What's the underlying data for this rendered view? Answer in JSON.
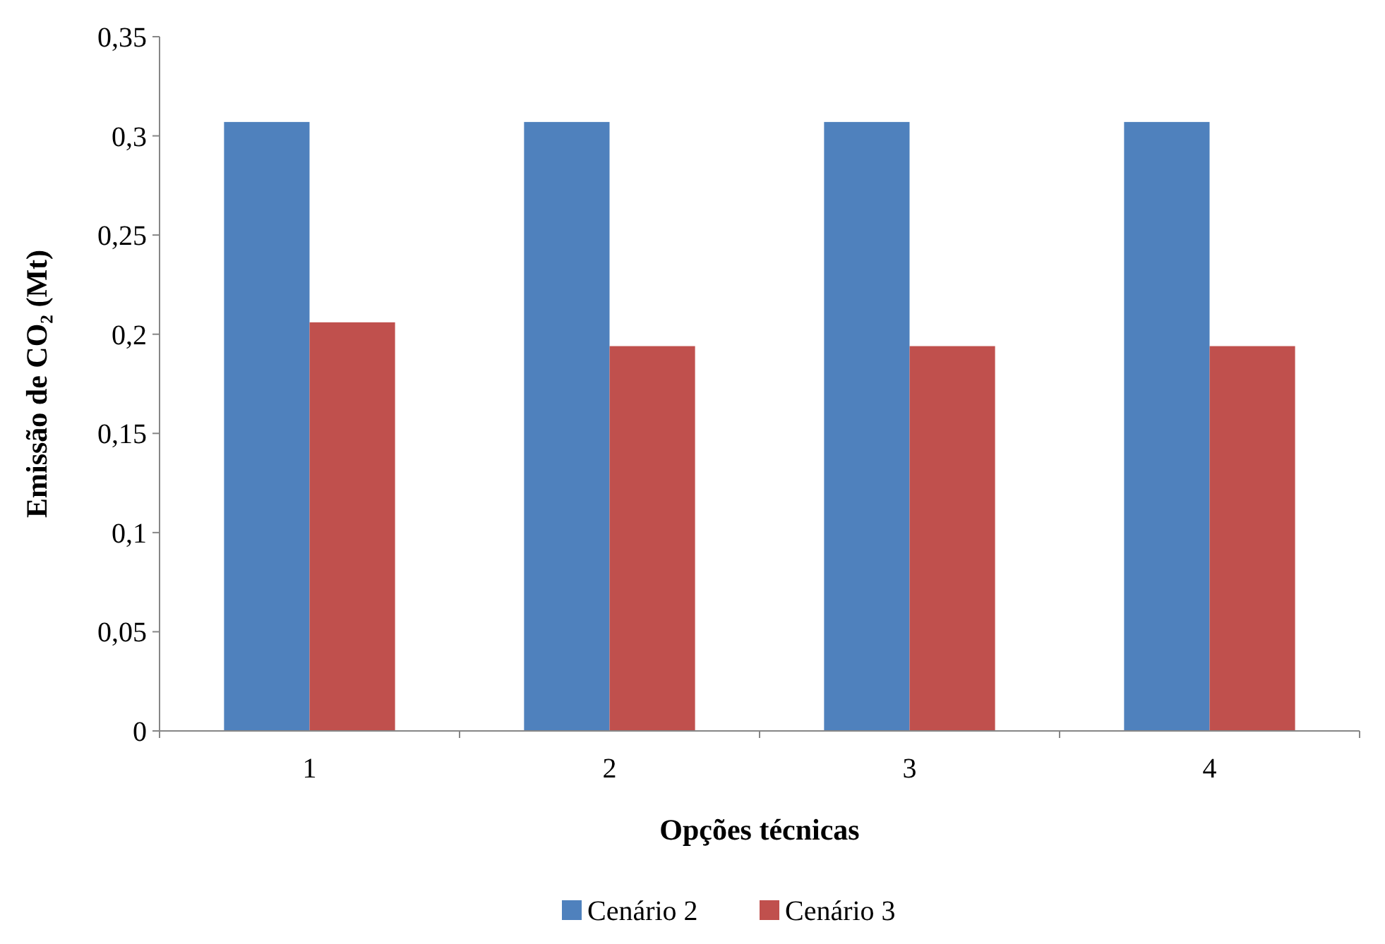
{
  "chart_data": {
    "type": "bar",
    "xlabel": "Opções técnicas",
    "ylabel": "Emissão de CO₂ (Mt)",
    "categories": [
      "1",
      "2",
      "3",
      "4"
    ],
    "series": [
      {
        "name": "Cenário 2",
        "color": "#4f81bd",
        "values": [
          0.307,
          0.307,
          0.307,
          0.307
        ]
      },
      {
        "name": "Cenário 3",
        "color": "#c0504d",
        "values": [
          0.206,
          0.194,
          0.194,
          0.194
        ]
      }
    ],
    "ylim": [
      0,
      0.35
    ],
    "yticks": [
      0,
      {
        "value": 0.05,
        "label": "0,05"
      },
      {
        "value": 0.1,
        "label": "0,1"
      },
      {
        "value": 0.15,
        "label": "0,15"
      },
      {
        "value": 0.2,
        "label": "0,2"
      },
      {
        "value": 0.25,
        "label": "0,25"
      },
      {
        "value": 0.3,
        "label": "0,3"
      },
      {
        "value": 0.35,
        "label": "0,35"
      }
    ],
    "grid": false,
    "legend": "bottom"
  }
}
